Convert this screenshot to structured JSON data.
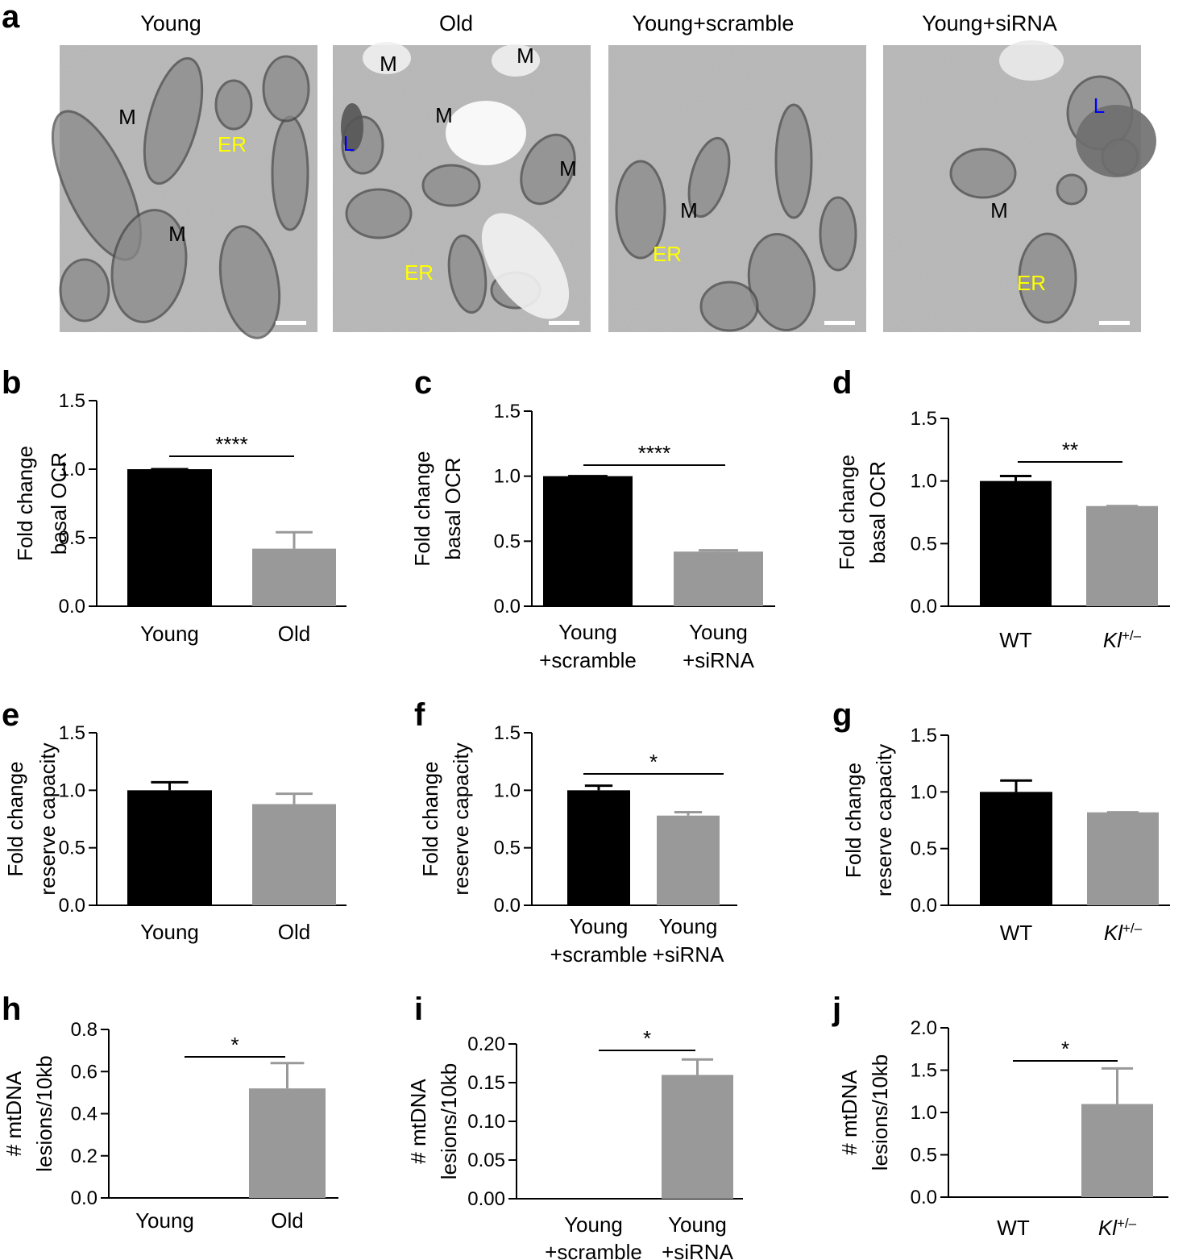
{
  "figure": {
    "micrographs": {
      "panel_letter": "a",
      "images": [
        {
          "title": "Young",
          "labels": [
            {
              "text": "M",
              "color": "#000000"
            },
            {
              "text": "ER",
              "color": "#ffff00"
            },
            {
              "text": "M",
              "color": "#000000"
            }
          ]
        },
        {
          "title": "Old",
          "labels": [
            {
              "text": "M",
              "color": "#000000"
            },
            {
              "text": "M",
              "color": "#000000"
            },
            {
              "text": "M",
              "color": "#000000"
            },
            {
              "text": "L",
              "color": "#0000ff"
            },
            {
              "text": "M",
              "color": "#000000"
            },
            {
              "text": "ER",
              "color": "#ffff00"
            }
          ]
        },
        {
          "title": "Young+scramble",
          "labels": [
            {
              "text": "M",
              "color": "#000000"
            },
            {
              "text": "ER",
              "color": "#ffff00"
            }
          ]
        },
        {
          "title": "Young+siRNA",
          "labels": [
            {
              "text": "L",
              "color": "#0000ff"
            },
            {
              "text": "M",
              "color": "#000000"
            },
            {
              "text": "ER",
              "color": "#ffff00"
            }
          ]
        }
      ]
    }
  },
  "colors": {
    "bar_black": "#000000",
    "bar_gray": "#999999",
    "em_base": "#b3b3b3"
  },
  "chart_data": [
    {
      "id": "b",
      "type": "bar",
      "ylabel": [
        "Fold change",
        "basal OCR"
      ],
      "ylim": [
        0,
        1.5
      ],
      "yticks": [
        "0.0",
        "0.5",
        "1.0",
        "1.5"
      ],
      "categories": [
        [
          "Young"
        ],
        [
          "Old"
        ]
      ],
      "values": [
        1.0,
        0.42
      ],
      "errors": [
        0,
        0.12
      ],
      "significance": "****"
    },
    {
      "id": "c",
      "type": "bar",
      "ylabel": [
        "Fold change",
        "basal OCR"
      ],
      "ylim": [
        0,
        1.5
      ],
      "yticks": [
        "0.0",
        "0.5",
        "1.0",
        "1.5"
      ],
      "categories": [
        [
          "Young",
          "+scramble"
        ],
        [
          "Young",
          "+siRNA"
        ]
      ],
      "values": [
        1.0,
        0.42
      ],
      "errors": [
        0,
        0.01
      ],
      "significance": "****"
    },
    {
      "id": "d",
      "type": "bar",
      "ylabel": [
        "Fold change",
        "basal OCR"
      ],
      "ylim": [
        0,
        1.5
      ],
      "yticks": [
        "0.0",
        "0.5",
        "1.0",
        "1.5"
      ],
      "categories": [
        [
          "WT"
        ],
        [
          "Kl+/–"
        ]
      ],
      "values": [
        1.0,
        0.8
      ],
      "errors": [
        0.04,
        0.0
      ],
      "significance": "**"
    },
    {
      "id": "e",
      "type": "bar",
      "ylabel": [
        "Fold change",
        "reserve capacity"
      ],
      "ylim": [
        0,
        1.5
      ],
      "yticks": [
        "0.0",
        "0.5",
        "1.0",
        "1.5"
      ],
      "categories": [
        [
          "Young"
        ],
        [
          "Old"
        ]
      ],
      "values": [
        1.0,
        0.88
      ],
      "errors": [
        0.07,
        0.09
      ],
      "significance": ""
    },
    {
      "id": "f",
      "type": "bar",
      "ylabel": [
        "Fold change",
        "reserve capacity"
      ],
      "ylim": [
        0,
        1.5
      ],
      "yticks": [
        "0.0",
        "0.5",
        "1.0",
        "1.5"
      ],
      "categories": [
        [
          "Young",
          "+scramble"
        ],
        [
          "Young",
          "+siRNA"
        ]
      ],
      "values": [
        1.0,
        0.78
      ],
      "errors": [
        0.04,
        0.03
      ],
      "significance": "*"
    },
    {
      "id": "g",
      "type": "bar",
      "ylabel": [
        "Fold change",
        "reserve capacity"
      ],
      "ylim": [
        0,
        1.5
      ],
      "yticks": [
        "0.0",
        "0.5",
        "1.0",
        "1.5"
      ],
      "categories": [
        [
          "WT"
        ],
        [
          "Kl+/–"
        ]
      ],
      "values": [
        1.0,
        0.82
      ],
      "errors": [
        0.1,
        0.0
      ],
      "significance": ""
    },
    {
      "id": "h",
      "type": "bar",
      "ylabel": [
        "# mtDNA",
        "lesions/10kb"
      ],
      "ylim": [
        0,
        0.8
      ],
      "yticks": [
        "0.0",
        "0.2",
        "0.4",
        "0.6",
        "0.8"
      ],
      "categories": [
        [
          "Young"
        ],
        [
          "Old"
        ]
      ],
      "values": [
        0,
        0.52
      ],
      "errors": [
        0,
        0.12
      ],
      "significance": "*"
    },
    {
      "id": "i",
      "type": "bar",
      "ylabel": [
        "# mtDNA",
        "lesions/10kb"
      ],
      "ylim": [
        0,
        0.2
      ],
      "yticks": [
        "0.00",
        "0.05",
        "0.10",
        "0.15",
        "0.20"
      ],
      "categories": [
        [
          "Young",
          "+scramble"
        ],
        [
          "Young",
          "+siRNA"
        ]
      ],
      "values": [
        0,
        0.16
      ],
      "errors": [
        0,
        0.02
      ],
      "significance": "*"
    },
    {
      "id": "j",
      "type": "bar",
      "ylabel": [
        "# mtDNA",
        "lesions/10kb"
      ],
      "ylim": [
        0,
        2.0
      ],
      "yticks": [
        "0.0",
        "0.5",
        "1.0",
        "1.5",
        "2.0"
      ],
      "categories": [
        [
          "WT"
        ],
        [
          "Kl+/–"
        ]
      ],
      "values": [
        0,
        1.1
      ],
      "errors": [
        0,
        0.42
      ],
      "significance": "*"
    }
  ]
}
